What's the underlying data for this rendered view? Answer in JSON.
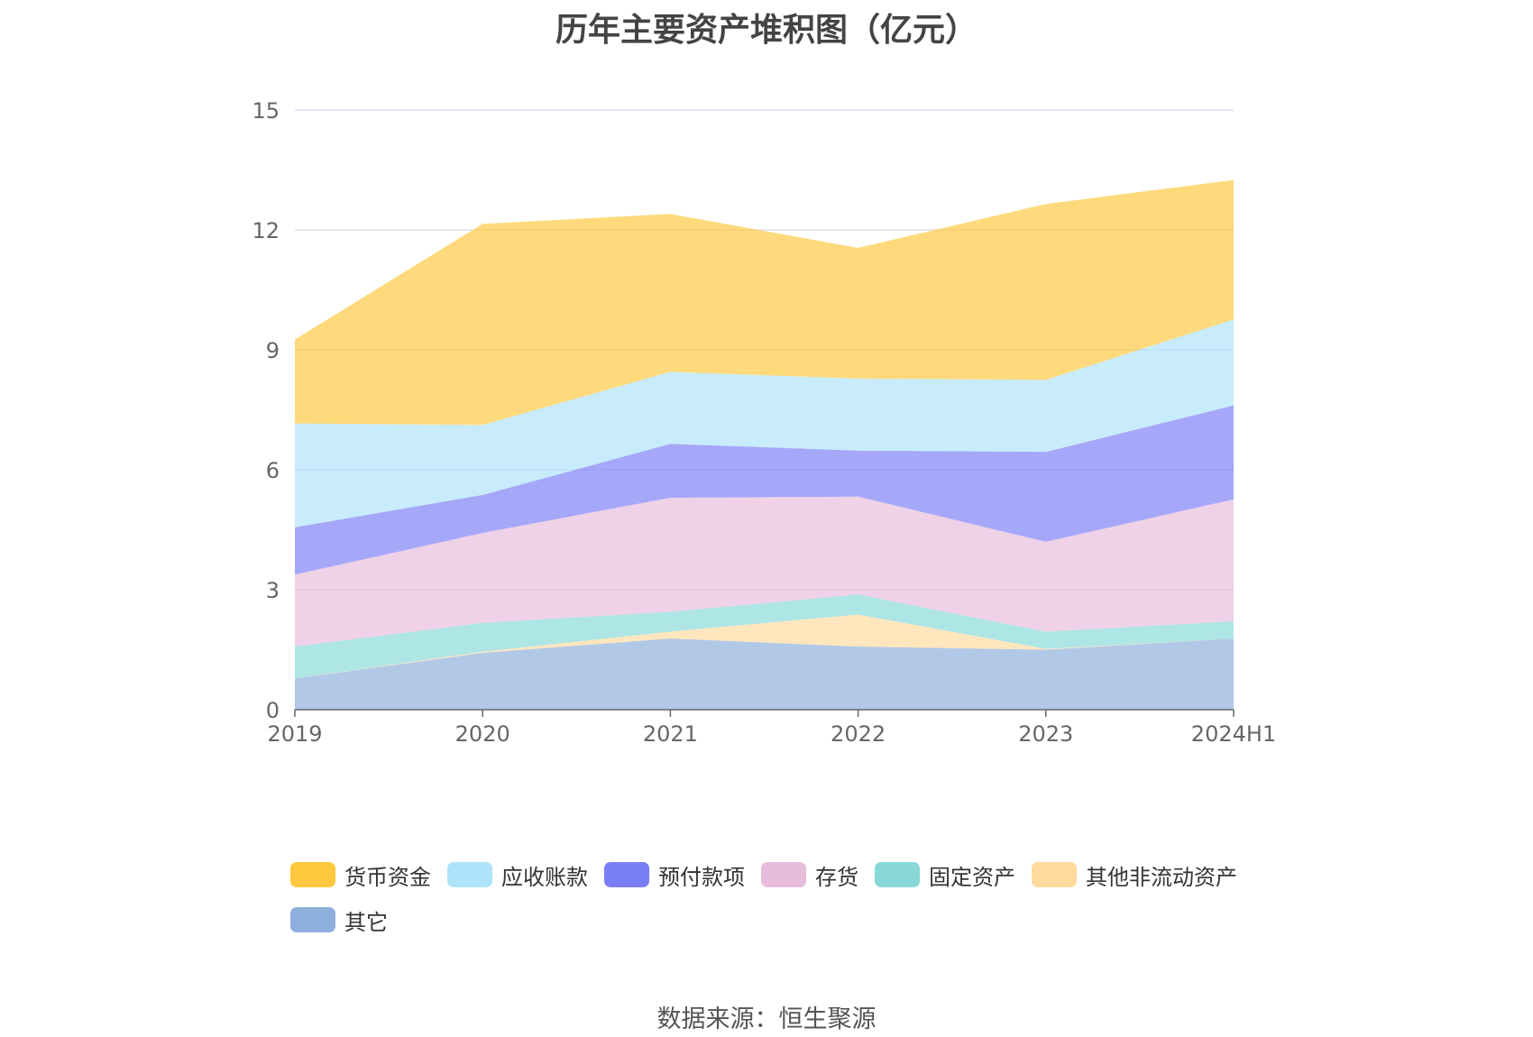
{
  "chart_data": {
    "type": "area",
    "stacked": true,
    "title": "历年主要资产堆积图（亿元）",
    "x": [
      "2019",
      "2020",
      "2021",
      "2022",
      "2023",
      "2024H1"
    ],
    "ylim": [
      0,
      15
    ],
    "yticks": [
      0,
      3,
      6,
      9,
      12,
      15
    ],
    "grid": true,
    "legend_position": "bottom",
    "series": [
      {
        "name": "其它",
        "color": "#8EAEDB",
        "values": [
          0.78,
          1.42,
          1.78,
          1.58,
          1.5,
          1.78
        ]
      },
      {
        "name": "其他非流动资产",
        "color": "#FFDA9E",
        "values": [
          0.0,
          0.03,
          0.17,
          0.8,
          0.02,
          0.0
        ]
      },
      {
        "name": "固定资产",
        "color": "#88D8D8",
        "values": [
          0.8,
          0.72,
          0.5,
          0.5,
          0.43,
          0.43
        ]
      },
      {
        "name": "存货",
        "color": "#E8BCDB",
        "values": [
          1.8,
          2.25,
          2.85,
          2.45,
          2.25,
          3.05
        ]
      },
      {
        "name": "预付款项",
        "color": "#7A7EF6",
        "values": [
          1.18,
          0.95,
          1.35,
          1.15,
          2.25,
          2.35
        ]
      },
      {
        "name": "应收账款",
        "color": "#AEE3FA",
        "values": [
          2.6,
          1.75,
          1.8,
          1.8,
          1.8,
          2.15
        ]
      },
      {
        "name": "货币资金",
        "color": "#FFC83E",
        "values": [
          2.1,
          5.03,
          3.95,
          3.27,
          4.4,
          3.49
        ]
      }
    ]
  },
  "legend_order": [
    "货币资金",
    "应收账款",
    "预付款项",
    "存货",
    "固定资产",
    "其他非流动资产",
    "其它"
  ],
  "source": "数据来源：恒生聚源"
}
